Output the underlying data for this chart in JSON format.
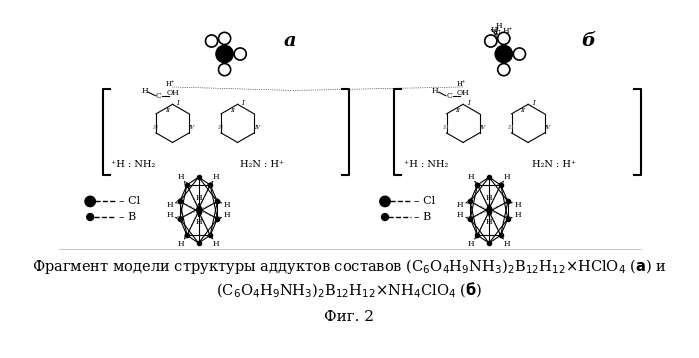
{
  "figsize": [
    6.99,
    3.58
  ],
  "dpi": 100,
  "bg_color": "#ffffff",
  "title_line1": "Фрагмент модели структуры аддуктов составов (C₆O₄H₉NH₃)₂B₁₂H₁₂×HClO₄ (а) и",
  "title_line2": "(C₆O₄H₉NH₃)₂B₁₂H₁₂×NH₄ClO₄ (б)",
  "title_line3": "Фиг. 2",
  "label_a": "а",
  "label_b": "б",
  "font_size_main": 10.5,
  "font_size_label": 14,
  "font_size_fig": 11
}
